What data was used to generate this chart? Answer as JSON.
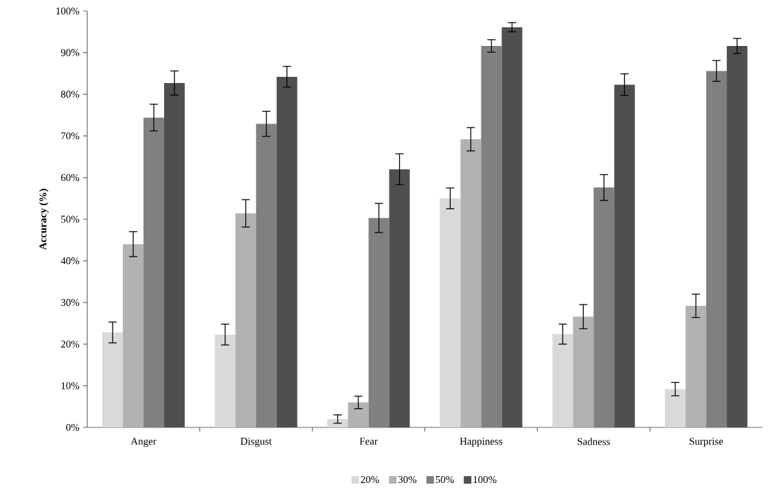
{
  "chart_data": {
    "type": "bar",
    "ylabel": "Accuracy (%)",
    "categories": [
      "Anger",
      "Disgust",
      "Fear",
      "Happiness",
      "Sadness",
      "Surprise"
    ],
    "series": [
      {
        "name": "20%",
        "color": "#d9d9d9",
        "values": [
          22.8,
          22.3,
          2,
          55,
          22.4,
          9.2
        ],
        "errors": [
          2.5,
          2.5,
          1,
          2.5,
          2.4,
          1.6
        ]
      },
      {
        "name": "30%",
        "color": "#b2b2b2",
        "values": [
          44,
          51.4,
          6,
          69.2,
          26.6,
          29.2
        ],
        "errors": [
          3,
          3.3,
          1.5,
          2.8,
          2.9,
          2.8
        ]
      },
      {
        "name": "50%",
        "color": "#808080",
        "values": [
          74.4,
          72.9,
          50.3,
          91.6,
          57.6,
          85.6
        ],
        "errors": [
          3.2,
          3,
          3.5,
          1.5,
          3.1,
          2.5
        ]
      },
      {
        "name": "100%",
        "color": "#4f4f4f",
        "values": [
          82.7,
          84.2,
          62,
          96.1,
          82.3,
          91.6
        ],
        "errors": [
          2.9,
          2.5,
          3.7,
          1.1,
          2.6,
          1.8
        ]
      }
    ],
    "ylim": [
      0,
      100
    ],
    "yticks": [
      {
        "value": 0,
        "label": "0%"
      },
      {
        "value": 10,
        "label": "10%"
      },
      {
        "value": 20,
        "label": "20%"
      },
      {
        "value": 30,
        "label": "30%"
      },
      {
        "value": 40,
        "label": "40%"
      },
      {
        "value": 50,
        "label": "50%"
      },
      {
        "value": 60,
        "label": "60%"
      },
      {
        "value": 70,
        "label": "70%"
      },
      {
        "value": 80,
        "label": "80%"
      },
      {
        "value": 90,
        "label": "90%"
      },
      {
        "value": 100,
        "label": "100%"
      }
    ],
    "grid": false,
    "legend": "bottom"
  }
}
